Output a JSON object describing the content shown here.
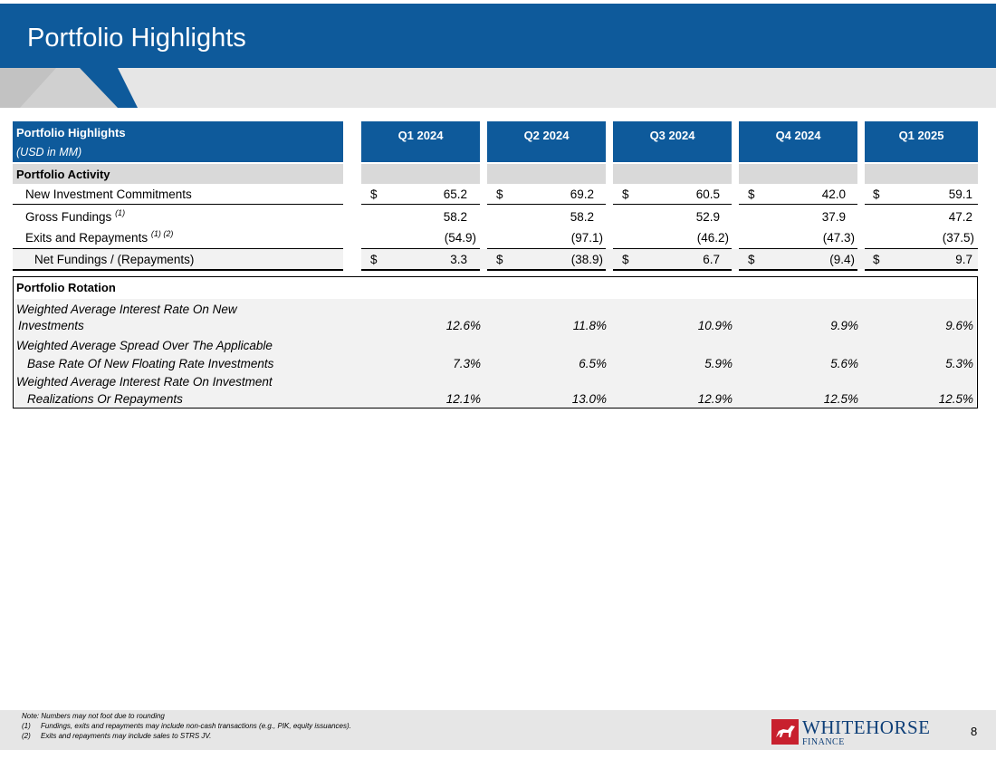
{
  "slide": {
    "title": "Portfolio Highlights",
    "page_number": "8"
  },
  "table": {
    "header": {
      "title": "Portfolio Highlights",
      "subtitle": "(USD in MM)"
    },
    "quarters": [
      "Q1 2024",
      "Q2 2024",
      "Q3 2024",
      "Q4 2024",
      "Q1 2025"
    ],
    "activity_section": "Portfolio Activity",
    "activity_rows": [
      {
        "label": "New Investment Commitments",
        "sup": "",
        "dollar": true,
        "values": [
          "65.2",
          "69.2",
          "60.5",
          "42.0",
          "59.1"
        ]
      },
      {
        "label": "Gross Fundings",
        "sup": "(1)",
        "dollar": false,
        "values": [
          "58.2",
          "58.2",
          "52.9",
          "37.9",
          "47.2"
        ]
      },
      {
        "label": "Exits and Repayments",
        "sup": "(1) (2)",
        "dollar": false,
        "values": [
          "(54.9)",
          "(97.1)",
          "(46.2)",
          "(47.3)",
          "(37.5)"
        ]
      },
      {
        "label": "Net Fundings / (Repayments)",
        "sup": "",
        "dollar": true,
        "values": [
          "3.3",
          "(38.9)",
          "6.7",
          "(9.4)",
          "9.7"
        ]
      }
    ],
    "currency_symbol": "$",
    "rotation_section": "Portfolio Rotation",
    "rotation_rows": [
      {
        "line1": "Weighted Average Interest Rate On New",
        "line2": "Investments",
        "values": [
          "12.6%",
          "11.8%",
          "10.9%",
          "9.9%",
          "9.6%"
        ]
      },
      {
        "line1": "Weighted Average Spread Over The Applicable",
        "line2": "Base Rate Of New Floating Rate Investments",
        "values": [
          "7.3%",
          "6.5%",
          "5.9%",
          "5.6%",
          "5.3%"
        ]
      },
      {
        "line1": "Weighted Average Interest Rate On Investment",
        "line2": "Realizations Or Repayments",
        "values": [
          "12.1%",
          "13.0%",
          "12.9%",
          "12.5%",
          "12.5%"
        ]
      }
    ]
  },
  "footer": {
    "notes": [
      {
        "marker": "",
        "text": "Note: Numbers may not foot due to rounding"
      },
      {
        "marker": "(1)",
        "text": "Fundings, exits and repayments may include non-cash transactions (e.g., PIK, equity issuances)."
      },
      {
        "marker": "(2)",
        "text": "Exits and repayments may include sales to STRS JV."
      }
    ],
    "logo": {
      "name": "WHITEHORSE",
      "sub": "FINANCE",
      "icon": "horse-logo-icon"
    }
  },
  "colors": {
    "brand_blue": "#0e5a9b",
    "band_gray": "#e6e6e6",
    "row_gray": "#d9d9d9",
    "logo_red": "#c8202e"
  }
}
